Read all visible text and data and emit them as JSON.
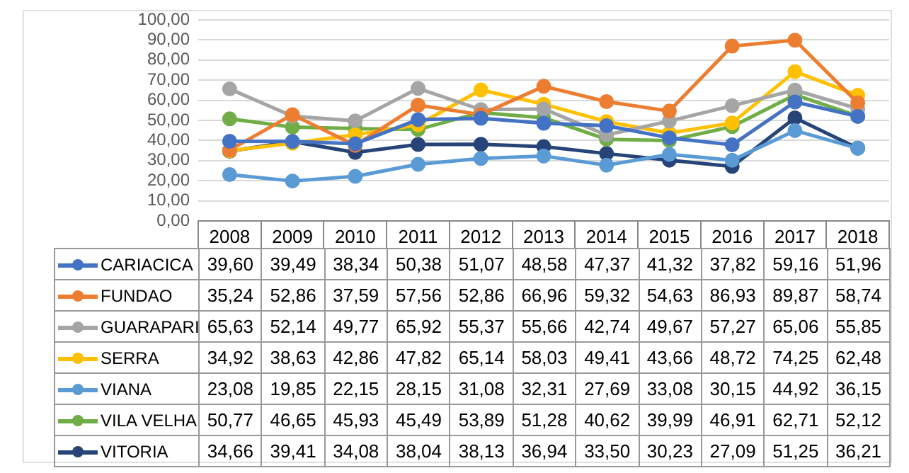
{
  "chart_data": {
    "type": "line",
    "categories": [
      "2008",
      "2009",
      "2010",
      "2011",
      "2012",
      "2013",
      "2014",
      "2015",
      "2016",
      "2017",
      "2018"
    ],
    "ylim": [
      0,
      100
    ],
    "yticks": [
      {
        "value": 0,
        "label": "0,00"
      },
      {
        "value": 10,
        "label": "10,00"
      },
      {
        "value": 20,
        "label": "20,00"
      },
      {
        "value": 30,
        "label": "30,00"
      },
      {
        "value": 40,
        "label": "40,00"
      },
      {
        "value": 50,
        "label": "50,00"
      },
      {
        "value": 60,
        "label": "60,00"
      },
      {
        "value": 70,
        "label": "70,00"
      },
      {
        "value": 80,
        "label": "80,00"
      },
      {
        "value": 90,
        "label": "90,00"
      },
      {
        "value": 100,
        "label": "100,00"
      }
    ],
    "grid": "y",
    "marker": "circle",
    "legend": "bottom left",
    "series": [
      {
        "name": "CARIACICA",
        "color": "#4472c4",
        "values": [
          39.6,
          39.49,
          38.34,
          50.38,
          51.07,
          48.58,
          47.37,
          41.32,
          37.82,
          59.16,
          51.96
        ],
        "value_labels": [
          "39,60",
          "39,49",
          "38,34",
          "50,38",
          "51,07",
          "48,58",
          "47,37",
          "41,32",
          "37,82",
          "59,16",
          "51,96"
        ]
      },
      {
        "name": "FUNDAO",
        "color": "#ed7d31",
        "values": [
          35.24,
          52.86,
          37.59,
          57.56,
          52.86,
          66.96,
          59.32,
          54.63,
          86.93,
          89.87,
          58.74
        ],
        "value_labels": [
          "35,24",
          "52,86",
          "37,59",
          "57,56",
          "52,86",
          "66,96",
          "59,32",
          "54,63",
          "86,93",
          "89,87",
          "58,74"
        ]
      },
      {
        "name": "GUARAPARI",
        "color": "#a5a5a5",
        "values": [
          65.63,
          52.14,
          49.77,
          65.92,
          55.37,
          55.66,
          42.74,
          49.67,
          57.27,
          65.06,
          55.85
        ],
        "value_labels": [
          "65,63",
          "52,14",
          "49,77",
          "65,92",
          "55,37",
          "55,66",
          "42,74",
          "49,67",
          "57,27",
          "65,06",
          "55,85"
        ]
      },
      {
        "name": "SERRA",
        "color": "#ffc000",
        "values": [
          34.92,
          38.63,
          42.86,
          47.82,
          65.14,
          58.03,
          49.41,
          43.66,
          48.72,
          74.25,
          62.48
        ],
        "value_labels": [
          "34,92",
          "38,63",
          "42,86",
          "47,82",
          "65,14",
          "58,03",
          "49,41",
          "43,66",
          "48,72",
          "74,25",
          "62,48"
        ]
      },
      {
        "name": "VIANA",
        "color": "#5b9bd5",
        "values": [
          23.08,
          19.85,
          22.15,
          28.15,
          31.08,
          32.31,
          27.69,
          33.08,
          30.15,
          44.92,
          36.15
        ],
        "value_labels": [
          "23,08",
          "19,85",
          "22,15",
          "28,15",
          "31,08",
          "32,31",
          "27,69",
          "33,08",
          "30,15",
          "44,92",
          "36,15"
        ]
      },
      {
        "name": "VILA VELHA",
        "color": "#70ad47",
        "values": [
          50.77,
          46.65,
          45.93,
          45.49,
          53.89,
          51.28,
          40.62,
          39.99,
          46.91,
          62.71,
          52.12
        ],
        "value_labels": [
          "50,77",
          "46,65",
          "45,93",
          "45,49",
          "53,89",
          "51,28",
          "40,62",
          "39,99",
          "46,91",
          "62,71",
          "52,12"
        ]
      },
      {
        "name": "VITORIA",
        "color": "#264478",
        "values": [
          34.66,
          39.41,
          34.08,
          38.04,
          38.13,
          36.94,
          33.5,
          30.23,
          27.09,
          51.25,
          36.21
        ],
        "value_labels": [
          "34,66",
          "39,41",
          "34,08",
          "38,04",
          "38,13",
          "36,94",
          "33,50",
          "30,23",
          "27,09",
          "51,25",
          "36,21"
        ]
      }
    ]
  }
}
